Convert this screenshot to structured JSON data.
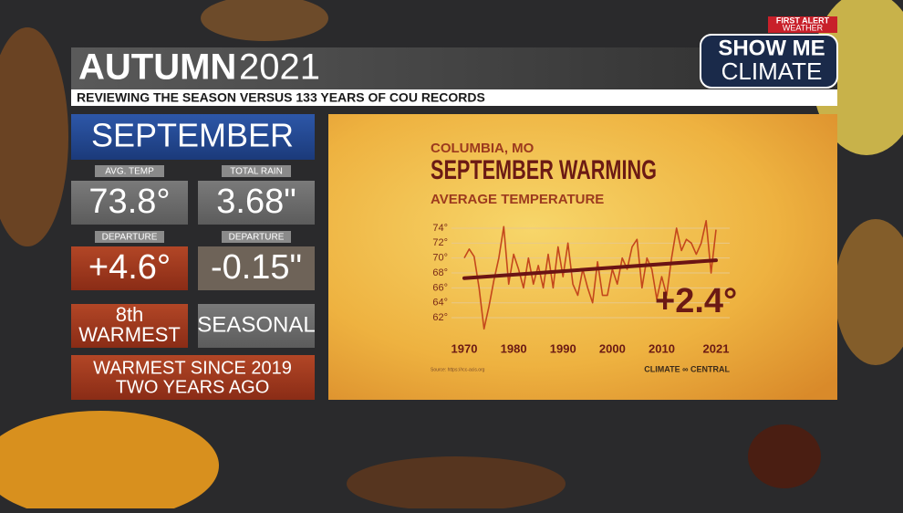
{
  "header": {
    "title": "AUTUMN",
    "year": "2021",
    "subtitle": "REVIEWING THE SEASON VERSUS 133 YEARS OF COU RECORDS"
  },
  "logo": {
    "top": "FIRST ALERT",
    "bottom": "WEATHER",
    "line1": "SHOW ME",
    "line2": "CLIMATE"
  },
  "panel": {
    "month": "SEPTEMBER",
    "stats": [
      {
        "label": "AVG. TEMP",
        "value": "73.8°"
      },
      {
        "label": "TOTAL RAIN",
        "value": "3.68\""
      },
      {
        "label": "DEPARTURE",
        "value": "+4.6°"
      },
      {
        "label": "DEPARTURE",
        "value": "-0.15\""
      }
    ],
    "rank": [
      "8th",
      "WARMEST"
    ],
    "status": "SEASONAL",
    "note": [
      "WARMEST SINCE 2019",
      "TWO YEARS AGO"
    ]
  },
  "chart_data": {
    "type": "line",
    "location": "COLUMBIA, MO",
    "title": "SEPTEMBER WARMING",
    "subtitle": "AVERAGE TEMPERATURE",
    "annotation": "+2.4°",
    "source": "Source: https://rcc-acis.org",
    "credit": "CLIMATE ∞ CENTRAL",
    "x": [
      1970,
      1971,
      1972,
      1973,
      1974,
      1975,
      1976,
      1977,
      1978,
      1979,
      1980,
      1981,
      1982,
      1983,
      1984,
      1985,
      1986,
      1987,
      1988,
      1989,
      1990,
      1991,
      1992,
      1993,
      1994,
      1995,
      1996,
      1997,
      1998,
      1999,
      2000,
      2001,
      2002,
      2003,
      2004,
      2005,
      2006,
      2007,
      2008,
      2009,
      2010,
      2011,
      2012,
      2013,
      2014,
      2015,
      2016,
      2017,
      2018,
      2019,
      2020,
      2021
    ],
    "series": [
      {
        "color": "#c4471c",
        "values": [
          70.0,
          71.2,
          70.2,
          66.0,
          60.5,
          63.5,
          67.0,
          70.0,
          74.2,
          66.5,
          70.5,
          68.5,
          66.0,
          70.0,
          66.5,
          69.0,
          66.0,
          70.5,
          66.0,
          71.5,
          67.5,
          72.0,
          66.5,
          65.0,
          68.5,
          66.0,
          64.0,
          69.5,
          65.0,
          65.0,
          68.5,
          66.5,
          70.0,
          68.5,
          71.5,
          72.5,
          66.0,
          70.0,
          68.5,
          64.5,
          67.5,
          65.0,
          70.0,
          74.0,
          71.0,
          72.5,
          72.0,
          70.5,
          72.0,
          75.0,
          68.0,
          73.8
        ]
      }
    ],
    "trend": {
      "color": "#6b1414",
      "x": [
        1970,
        2021
      ],
      "values": [
        67.3,
        69.7
      ]
    },
    "xlim": [
      1970,
      2021
    ],
    "xticks": [
      1970,
      1980,
      1990,
      2000,
      2010,
      2021
    ],
    "ylim": [
      60,
      75
    ],
    "yticks": [
      {
        "value": 62,
        "label": "62°"
      },
      {
        "value": 64,
        "label": "64°"
      },
      {
        "value": 66,
        "label": "66°"
      },
      {
        "value": 68,
        "label": "68°"
      },
      {
        "value": 70,
        "label": "70°"
      },
      {
        "value": 72,
        "label": "72°"
      },
      {
        "value": 74,
        "label": "74°"
      }
    ],
    "grid": true
  }
}
